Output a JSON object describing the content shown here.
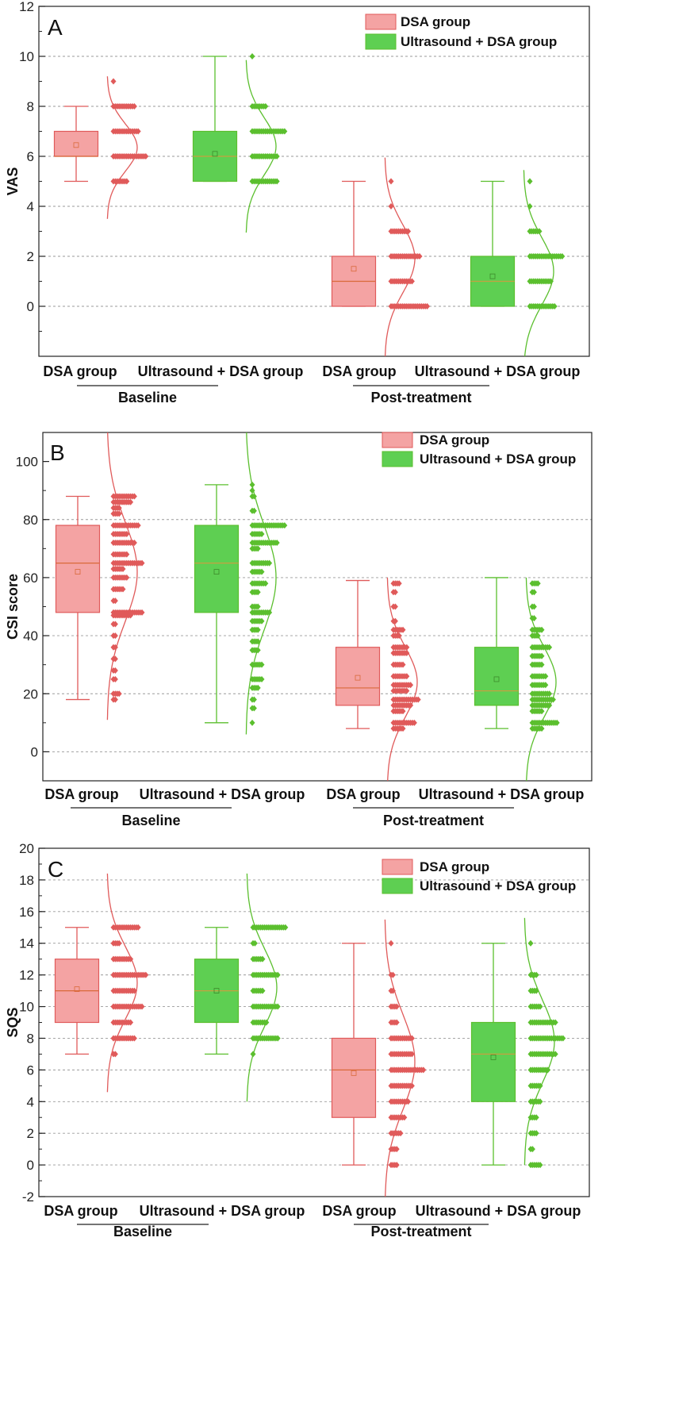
{
  "colors": {
    "dsa_fill": "#f4a3a3",
    "dsa_line": "#e05a5a",
    "us_fill": "#5ecf52",
    "us_line": "#5bbf2e"
  },
  "chart_data": [
    {
      "type": "box-violin",
      "panel": "A",
      "ylabel": "VAS",
      "ylim": [
        -2,
        12
      ],
      "major_ticks": [
        0,
        2,
        4,
        6,
        8,
        10,
        12
      ],
      "minor_step": 1,
      "gridlines": [
        0,
        2,
        4,
        6,
        8,
        10
      ],
      "legend": [
        "DSA group",
        "Ultrasound + DSA group"
      ],
      "categories": [
        "DSA group",
        "Ultrasound + DSA group",
        "DSA group",
        "Ultrasound + DSA group"
      ],
      "timepoints": [
        "Baseline",
        "Post-treatment"
      ],
      "groups": [
        {
          "name": "DSA group",
          "timepoint": "Baseline",
          "color": "dsa",
          "box": {
            "min": 5,
            "q1": 6,
            "median": 6,
            "q3": 7,
            "max": 8,
            "mean": 6.45
          },
          "points": [
            {
              "value": 9,
              "n": 1
            },
            {
              "value": 8,
              "n": 12
            },
            {
              "value": 7,
              "n": 14
            },
            {
              "value": 6,
              "n": 18
            },
            {
              "value": 5,
              "n": 8
            }
          ],
          "curve": {
            "mean": 6.35,
            "sd": 0.95
          }
        },
        {
          "name": "Ultrasound + DSA group",
          "timepoint": "Baseline",
          "color": "us",
          "box": {
            "min": 5,
            "q1": 5,
            "median": 6,
            "q3": 7,
            "max": 10,
            "mean": 6.1
          },
          "points": [
            {
              "value": 10,
              "n": 1
            },
            {
              "value": 8,
              "n": 8
            },
            {
              "value": 7,
              "n": 18
            },
            {
              "value": 6,
              "n": 14
            },
            {
              "value": 5,
              "n": 14
            }
          ],
          "curve": {
            "mean": 6.4,
            "sd": 1.15
          }
        },
        {
          "name": "DSA group",
          "timepoint": "Post-treatment",
          "color": "dsa",
          "box": {
            "min": 0,
            "q1": 0,
            "median": 1,
            "q3": 2,
            "max": 5,
            "mean": 1.5
          },
          "points": [
            {
              "value": 5,
              "n": 1
            },
            {
              "value": 4,
              "n": 1
            },
            {
              "value": 3,
              "n": 10
            },
            {
              "value": 2,
              "n": 16
            },
            {
              "value": 1,
              "n": 12
            },
            {
              "value": 0,
              "n": 20
            }
          ],
          "curve": {
            "mean": 1.9,
            "sd": 1.35
          }
        },
        {
          "name": "Ultrasound + DSA group",
          "timepoint": "Post-treatment",
          "color": "us",
          "box": {
            "min": 0,
            "q1": 0,
            "median": 1,
            "q3": 2,
            "max": 5,
            "mean": 1.2
          },
          "points": [
            {
              "value": 5,
              "n": 1
            },
            {
              "value": 4,
              "n": 1
            },
            {
              "value": 3,
              "n": 6
            },
            {
              "value": 2,
              "n": 18
            },
            {
              "value": 1,
              "n": 12
            },
            {
              "value": 0,
              "n": 14
            }
          ],
          "curve": {
            "mean": 1.4,
            "sd": 1.35
          }
        }
      ]
    },
    {
      "type": "box-violin",
      "panel": "B",
      "ylabel": "CSI score",
      "ylim": [
        -10,
        110
      ],
      "major_ticks": [
        0,
        20,
        40,
        60,
        80,
        100
      ],
      "minor_step": 10,
      "gridlines": [
        0,
        20,
        40,
        60,
        80
      ],
      "legend": [
        "DSA group",
        "Ultrasound + DSA group"
      ],
      "categories": [
        "DSA group",
        "Ultrasound + DSA group",
        "DSA group",
        "Ultrasound + DSA group"
      ],
      "timepoints": [
        "Baseline",
        "Post-treatment"
      ],
      "groups": [
        {
          "name": "DSA group",
          "timepoint": "Baseline",
          "color": "dsa",
          "box": {
            "min": 18,
            "q1": 48,
            "median": 65,
            "q3": 78,
            "max": 88,
            "mean": 62
          },
          "points": [
            {
              "value": 88,
              "n": 12
            },
            {
              "value": 86,
              "n": 10
            },
            {
              "value": 84,
              "n": 4
            },
            {
              "value": 82,
              "n": 4
            },
            {
              "value": 78,
              "n": 14
            },
            {
              "value": 75,
              "n": 8
            },
            {
              "value": 72,
              "n": 12
            },
            {
              "value": 68,
              "n": 8
            },
            {
              "value": 65,
              "n": 16
            },
            {
              "value": 63,
              "n": 6
            },
            {
              "value": 60,
              "n": 8
            },
            {
              "value": 56,
              "n": 6
            },
            {
              "value": 52,
              "n": 2
            },
            {
              "value": 48,
              "n": 16
            },
            {
              "value": 47,
              "n": 10
            },
            {
              "value": 44,
              "n": 2
            },
            {
              "value": 40,
              "n": 2
            },
            {
              "value": 36,
              "n": 2
            },
            {
              "value": 32,
              "n": 2
            },
            {
              "value": 28,
              "n": 2
            },
            {
              "value": 25,
              "n": 2
            },
            {
              "value": 20,
              "n": 4
            },
            {
              "value": 18,
              "n": 2
            }
          ],
          "curve": {
            "mean": 62,
            "sd": 17
          }
        },
        {
          "name": "Ultrasound + DSA group",
          "timepoint": "Baseline",
          "color": "us",
          "box": {
            "min": 10,
            "q1": 48,
            "median": 65,
            "q3": 78,
            "max": 92,
            "mean": 62
          },
          "points": [
            {
              "value": 92,
              "n": 1
            },
            {
              "value": 90,
              "n": 1
            },
            {
              "value": 88,
              "n": 2
            },
            {
              "value": 83,
              "n": 2
            },
            {
              "value": 78,
              "n": 18
            },
            {
              "value": 75,
              "n": 6
            },
            {
              "value": 72,
              "n": 14
            },
            {
              "value": 70,
              "n": 4
            },
            {
              "value": 65,
              "n": 10
            },
            {
              "value": 62,
              "n": 6
            },
            {
              "value": 58,
              "n": 8
            },
            {
              "value": 55,
              "n": 4
            },
            {
              "value": 50,
              "n": 4
            },
            {
              "value": 48,
              "n": 10
            },
            {
              "value": 45,
              "n": 6
            },
            {
              "value": 42,
              "n": 4
            },
            {
              "value": 38,
              "n": 4
            },
            {
              "value": 35,
              "n": 4
            },
            {
              "value": 30,
              "n": 6
            },
            {
              "value": 25,
              "n": 6
            },
            {
              "value": 22,
              "n": 4
            },
            {
              "value": 18,
              "n": 2
            },
            {
              "value": 15,
              "n": 2
            },
            {
              "value": 10,
              "n": 1
            }
          ],
          "curve": {
            "mean": 60,
            "sd": 18
          }
        },
        {
          "name": "DSA group",
          "timepoint": "Post-treatment",
          "color": "dsa",
          "box": {
            "min": 8,
            "q1": 16,
            "median": 22,
            "q3": 36,
            "max": 59,
            "mean": 25.5
          },
          "points": [
            {
              "value": 58,
              "n": 4
            },
            {
              "value": 55,
              "n": 2
            },
            {
              "value": 50,
              "n": 2
            },
            {
              "value": 45,
              "n": 2
            },
            {
              "value": 42,
              "n": 6
            },
            {
              "value": 40,
              "n": 4
            },
            {
              "value": 36,
              "n": 8
            },
            {
              "value": 34,
              "n": 8
            },
            {
              "value": 30,
              "n": 6
            },
            {
              "value": 26,
              "n": 8
            },
            {
              "value": 23,
              "n": 10
            },
            {
              "value": 21,
              "n": 8
            },
            {
              "value": 18,
              "n": 14
            },
            {
              "value": 16,
              "n": 10
            },
            {
              "value": 14,
              "n": 6
            },
            {
              "value": 10,
              "n": 12
            },
            {
              "value": 8,
              "n": 6
            }
          ],
          "curve": {
            "mean": 24,
            "sd": 12
          }
        },
        {
          "name": "Ultrasound + DSA group",
          "timepoint": "Post-treatment",
          "color": "us",
          "box": {
            "min": 8,
            "q1": 16,
            "median": 21,
            "q3": 36,
            "max": 60,
            "mean": 25
          },
          "points": [
            {
              "value": 58,
              "n": 4
            },
            {
              "value": 55,
              "n": 2
            },
            {
              "value": 50,
              "n": 2
            },
            {
              "value": 46,
              "n": 2
            },
            {
              "value": 42,
              "n": 6
            },
            {
              "value": 40,
              "n": 4
            },
            {
              "value": 36,
              "n": 10
            },
            {
              "value": 33,
              "n": 6
            },
            {
              "value": 30,
              "n": 6
            },
            {
              "value": 26,
              "n": 8
            },
            {
              "value": 23,
              "n": 8
            },
            {
              "value": 20,
              "n": 10
            },
            {
              "value": 18,
              "n": 12
            },
            {
              "value": 16,
              "n": 10
            },
            {
              "value": 14,
              "n": 6
            },
            {
              "value": 10,
              "n": 14
            },
            {
              "value": 8,
              "n": 6
            }
          ],
          "curve": {
            "mean": 24,
            "sd": 12
          }
        }
      ]
    },
    {
      "type": "box-violin",
      "panel": "C",
      "ylabel": "SQS",
      "ylim": [
        -2,
        20
      ],
      "major_ticks": [
        -2,
        0,
        2,
        4,
        6,
        8,
        10,
        12,
        14,
        16,
        18,
        20
      ],
      "minor_step": 1,
      "gridlines": [
        0,
        2,
        4,
        6,
        8,
        10,
        12,
        14,
        16,
        18
      ],
      "legend": [
        "DSA group",
        "Ultrasound + DSA group"
      ],
      "categories": [
        "DSA group",
        "Ultrasound + DSA group",
        "DSA group",
        "Ultrasound + DSA group"
      ],
      "timepoints": [
        "Baseline",
        "Post-treatment"
      ],
      "groups": [
        {
          "name": "DSA group",
          "timepoint": "Baseline",
          "color": "dsa",
          "box": {
            "min": 7,
            "q1": 9,
            "median": 11,
            "q3": 13,
            "max": 15,
            "mean": 11.1
          },
          "points": [
            {
              "value": 15,
              "n": 14
            },
            {
              "value": 14,
              "n": 4
            },
            {
              "value": 13,
              "n": 10
            },
            {
              "value": 12,
              "n": 18
            },
            {
              "value": 11,
              "n": 12
            },
            {
              "value": 10,
              "n": 16
            },
            {
              "value": 9,
              "n": 10
            },
            {
              "value": 8,
              "n": 12
            },
            {
              "value": 7,
              "n": 2
            }
          ],
          "curve": {
            "mean": 11.5,
            "sd": 2.3
          }
        },
        {
          "name": "Ultrasound + DSA group",
          "timepoint": "Baseline",
          "color": "us",
          "box": {
            "min": 7,
            "q1": 9,
            "median": 11,
            "q3": 13,
            "max": 15,
            "mean": 11
          },
          "points": [
            {
              "value": 15,
              "n": 18
            },
            {
              "value": 14,
              "n": 2
            },
            {
              "value": 13,
              "n": 6
            },
            {
              "value": 12,
              "n": 14
            },
            {
              "value": 11,
              "n": 6
            },
            {
              "value": 10,
              "n": 14
            },
            {
              "value": 9,
              "n": 8
            },
            {
              "value": 8,
              "n": 14
            },
            {
              "value": 7,
              "n": 1
            }
          ],
          "curve": {
            "mean": 11.2,
            "sd": 2.4
          }
        },
        {
          "name": "DSA group",
          "timepoint": "Post-treatment",
          "color": "dsa",
          "box": {
            "min": 0,
            "q1": 3,
            "median": 6,
            "q3": 8,
            "max": 14,
            "mean": 5.8
          },
          "points": [
            {
              "value": 14,
              "n": 1
            },
            {
              "value": 12,
              "n": 2
            },
            {
              "value": 11,
              "n": 2
            },
            {
              "value": 10,
              "n": 4
            },
            {
              "value": 9,
              "n": 4
            },
            {
              "value": 8,
              "n": 12
            },
            {
              "value": 7,
              "n": 12
            },
            {
              "value": 6,
              "n": 18
            },
            {
              "value": 5,
              "n": 12
            },
            {
              "value": 4,
              "n": 10
            },
            {
              "value": 3,
              "n": 8
            },
            {
              "value": 2,
              "n": 6
            },
            {
              "value": 1,
              "n": 4
            },
            {
              "value": 0,
              "n": 4
            }
          ],
          "curve": {
            "mean": 6.5,
            "sd": 3.0
          }
        },
        {
          "name": "Ultrasound + DSA group",
          "timepoint": "Post-treatment",
          "color": "us",
          "box": {
            "min": 0,
            "q1": 4,
            "median": 7,
            "q3": 9,
            "max": 14,
            "mean": 6.8
          },
          "points": [
            {
              "value": 14,
              "n": 1
            },
            {
              "value": 12,
              "n": 4
            },
            {
              "value": 11,
              "n": 4
            },
            {
              "value": 10,
              "n": 6
            },
            {
              "value": 9,
              "n": 14
            },
            {
              "value": 8,
              "n": 18
            },
            {
              "value": 7,
              "n": 14
            },
            {
              "value": 6,
              "n": 10
            },
            {
              "value": 5,
              "n": 6
            },
            {
              "value": 4,
              "n": 6
            },
            {
              "value": 3,
              "n": 4
            },
            {
              "value": 2,
              "n": 4
            },
            {
              "value": 1,
              "n": 2
            },
            {
              "value": 0,
              "n": 6
            }
          ],
          "curve": {
            "mean": 7.8,
            "sd": 2.6
          }
        }
      ]
    }
  ]
}
